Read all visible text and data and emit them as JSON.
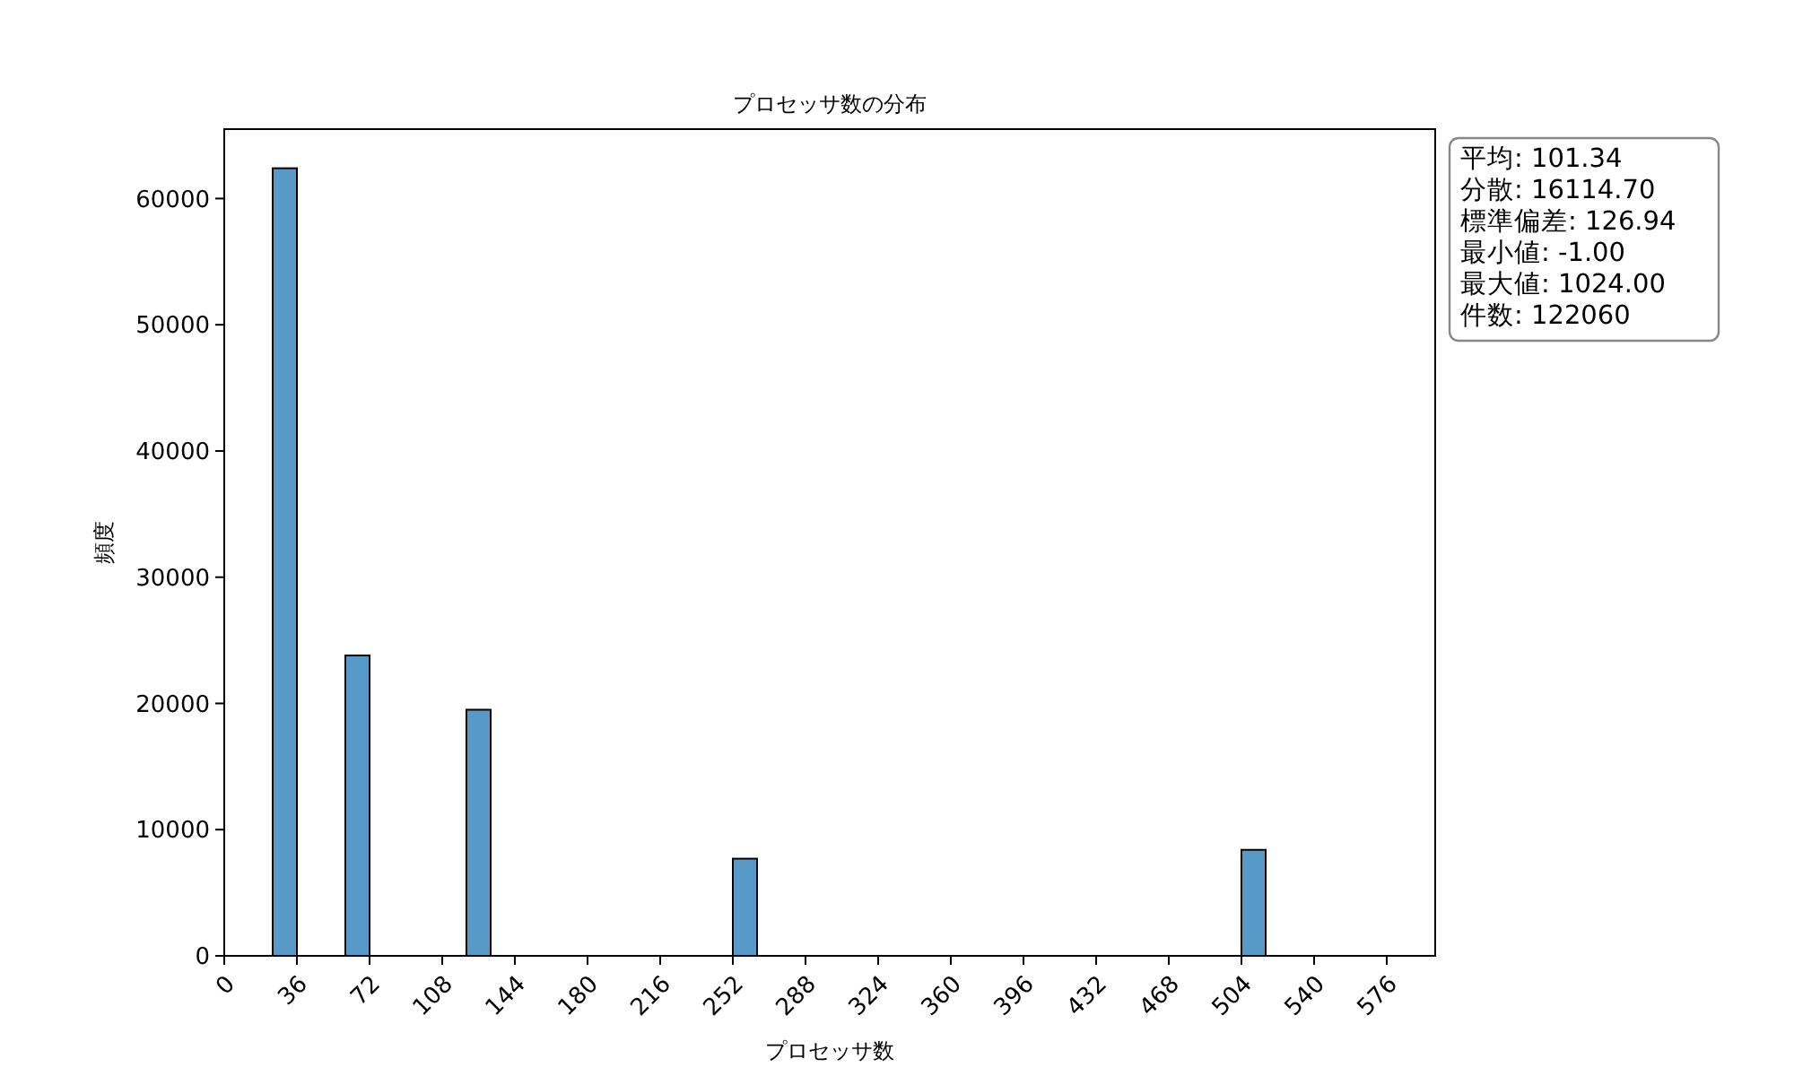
{
  "chart_data": {
    "type": "histogram",
    "title": "プロセッサ数の分布",
    "xlabel": "プロセッサ数",
    "ylabel": "頻度",
    "bins": [
      0,
      12,
      24,
      36,
      48,
      60,
      72,
      84,
      96,
      108,
      120,
      132,
      144,
      156,
      168,
      180,
      192,
      204,
      216,
      228,
      240,
      252,
      264,
      276,
      288,
      300,
      312,
      324,
      336,
      348,
      360,
      372,
      384,
      396,
      408,
      420,
      432,
      444,
      456,
      468,
      480,
      492,
      504,
      516,
      528,
      540,
      552,
      564,
      576,
      588
    ],
    "values": [
      0,
      0,
      62400,
      0,
      0,
      23800,
      0,
      0,
      0,
      0,
      19500,
      0,
      0,
      0,
      0,
      0,
      0,
      0,
      0,
      0,
      0,
      7700,
      0,
      0,
      0,
      0,
      0,
      0,
      0,
      0,
      0,
      0,
      0,
      0,
      0,
      0,
      0,
      0,
      0,
      0,
      0,
      0,
      8400,
      0,
      0,
      0,
      0,
      0,
      0
    ],
    "color": "#5799c7",
    "xlim": [
      0,
      600
    ],
    "xticks": [
      0,
      36,
      72,
      108,
      144,
      180,
      216,
      252,
      288,
      324,
      360,
      396,
      432,
      468,
      504,
      540,
      576
    ],
    "ylim": [
      0,
      65500
    ],
    "yticks": [
      0,
      10000,
      20000,
      30000,
      40000,
      50000,
      60000
    ],
    "grid": false,
    "annotations": [
      "平均: 101.34",
      "分散: 16114.70",
      "標準偏差: 126.94",
      "最小値: -1.00",
      "最大値: 1024.00",
      "件数: 122060"
    ]
  }
}
